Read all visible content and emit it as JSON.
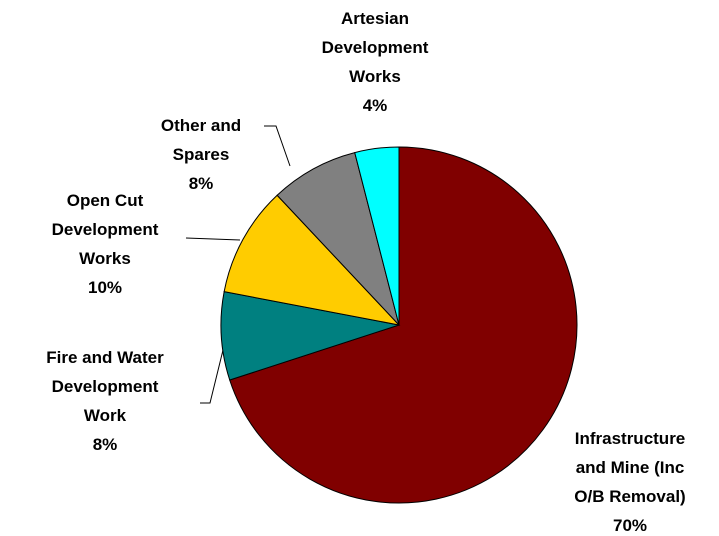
{
  "chart_data": {
    "type": "pie",
    "categories": [
      "Infrastructure\nand Mine (Inc\nO/B Removal)",
      "Fire and Water\nDevelopment\nWork",
      "Open Cut\nDevelopment\nWorks",
      "Other and\nSpares",
      "Artesian\nDevelopment\nWorks"
    ],
    "values": [
      70,
      8,
      10,
      8,
      4
    ],
    "value_labels": [
      "70%",
      "8%",
      "10%",
      "8%",
      "4%"
    ],
    "colors": [
      "#800000",
      "#008080",
      "#ffcc00",
      "#808080",
      "#00ffff"
    ]
  }
}
